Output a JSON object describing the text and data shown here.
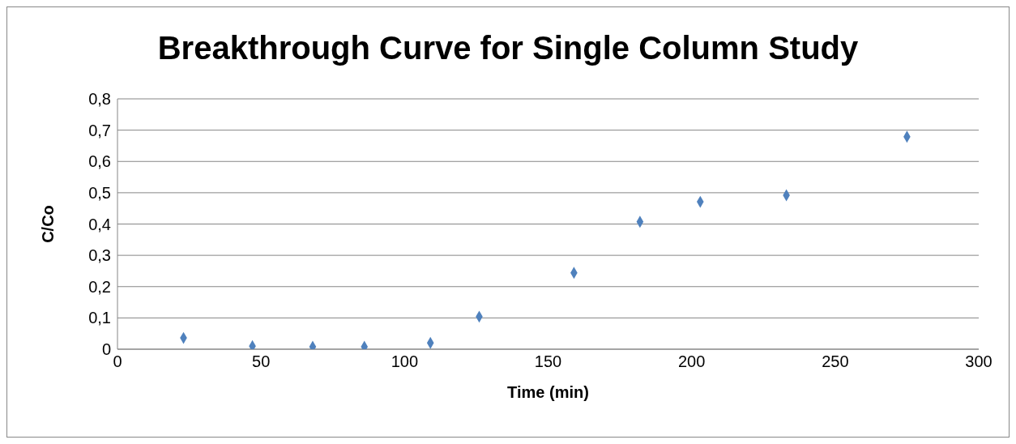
{
  "chart_data": {
    "type": "scatter",
    "title": "Breakthrough Curve for Single Column Study",
    "xlabel": "Time (min)",
    "ylabel": "C/Co",
    "x": [
      23,
      47,
      68,
      86,
      109,
      126,
      159,
      182,
      203,
      233,
      275
    ],
    "series": [
      {
        "color": "#4f81bd",
        "values": [
          0.036,
          0.01,
          0.008,
          0.008,
          0.02,
          0.104,
          0.244,
          0.407,
          0.471,
          0.492,
          0.679
        ]
      }
    ],
    "xlim": [
      0,
      300
    ],
    "xticks": [
      0,
      50,
      100,
      150,
      200,
      250,
      300
    ],
    "ylim": [
      0,
      0.8
    ],
    "yticks": [
      0,
      {
        "value": 0.1,
        "label": "0,1"
      },
      {
        "value": 0.2,
        "label": "0,2"
      },
      {
        "value": 0.3,
        "label": "0,3"
      },
      {
        "value": 0.4,
        "label": "0,4"
      },
      {
        "value": 0.5,
        "label": "0,5"
      },
      {
        "value": 0.6,
        "label": "0,6"
      },
      {
        "value": 0.7,
        "label": "0,7"
      },
      {
        "value": 0.8,
        "label": "0,8"
      }
    ],
    "grid": "y",
    "marker": "diamond"
  }
}
